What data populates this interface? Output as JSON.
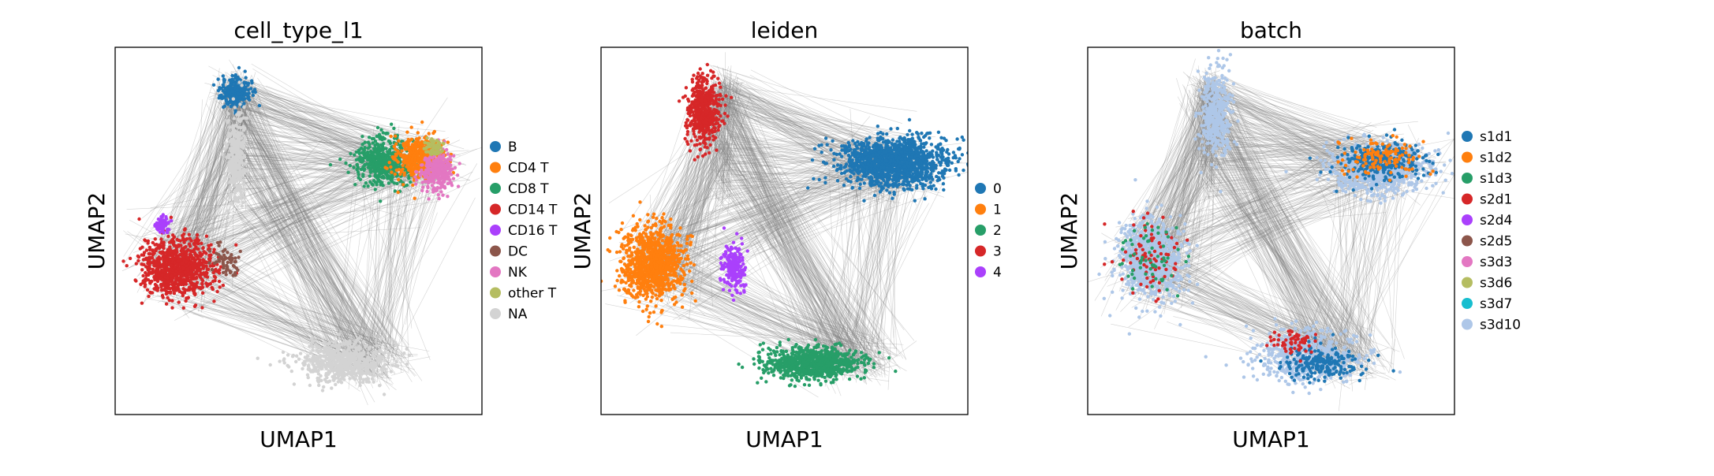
{
  "chart_data": [
    {
      "type": "scatter",
      "title": "cell_type_l1",
      "xlabel": "UMAP1",
      "ylabel": "UMAP2",
      "grid": false,
      "legend_placement": "right",
      "legend": [
        {
          "label": "B",
          "color": "#1f77b4"
        },
        {
          "label": "CD4 T",
          "color": "#ff7f0e"
        },
        {
          "label": "CD8 T",
          "color": "#279e68"
        },
        {
          "label": "CD14 T",
          "color": "#d62728"
        },
        {
          "label": "CD16 T",
          "color": "#aa40fc"
        },
        {
          "label": "DC",
          "color": "#8c564b"
        },
        {
          "label": "NK",
          "color": "#e377c2"
        },
        {
          "label": "other T",
          "color": "#b5bd61"
        },
        {
          "label": "NA",
          "color": "#d3d3d3"
        }
      ]
    },
    {
      "type": "scatter",
      "title": "leiden",
      "xlabel": "UMAP1",
      "ylabel": "UMAP2",
      "grid": false,
      "legend_placement": "right",
      "legend": [
        {
          "label": "0",
          "color": "#1f77b4"
        },
        {
          "label": "1",
          "color": "#ff7f0e"
        },
        {
          "label": "2",
          "color": "#279e68"
        },
        {
          "label": "3",
          "color": "#d62728"
        },
        {
          "label": "4",
          "color": "#aa40fc"
        }
      ]
    },
    {
      "type": "scatter",
      "title": "batch",
      "xlabel": "UMAP1",
      "ylabel": "UMAP2",
      "grid": false,
      "legend_placement": "right",
      "legend": [
        {
          "label": "s1d1",
          "color": "#1f77b4"
        },
        {
          "label": "s1d2",
          "color": "#ff7f0e"
        },
        {
          "label": "s1d3",
          "color": "#279e68"
        },
        {
          "label": "s2d1",
          "color": "#d62728"
        },
        {
          "label": "s2d4",
          "color": "#aa40fc"
        },
        {
          "label": "s2d5",
          "color": "#8c564b"
        },
        {
          "label": "s3d3",
          "color": "#e377c2"
        },
        {
          "label": "s3d6",
          "color": "#b5bd61"
        },
        {
          "label": "s3d7",
          "color": "#17becf"
        },
        {
          "label": "s3d10",
          "color": "#aec7e8"
        }
      ]
    }
  ]
}
